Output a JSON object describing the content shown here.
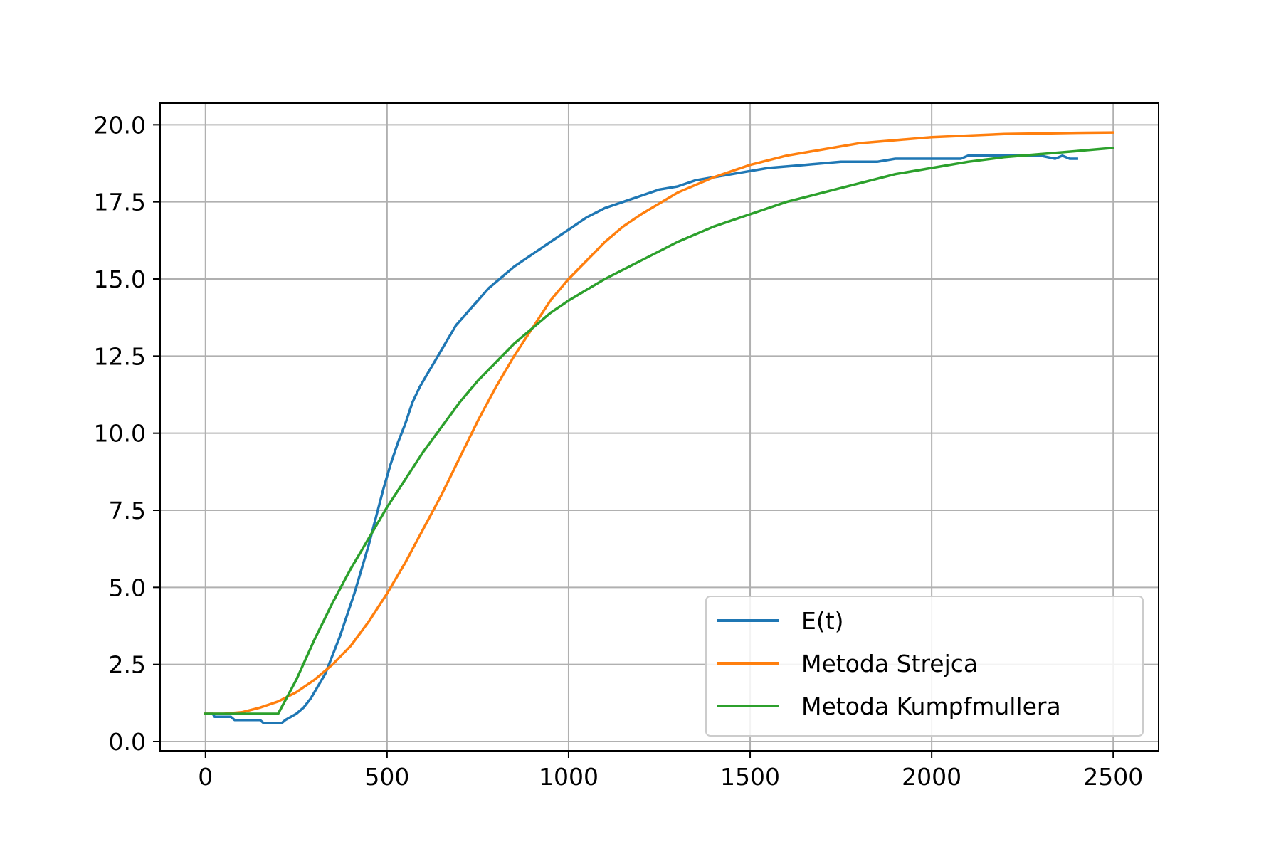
{
  "chart_data": {
    "type": "line",
    "title": "",
    "xlabel": "",
    "ylabel": "",
    "xlim": [
      -125,
      2625
    ],
    "ylim": [
      -0.3,
      20.7
    ],
    "grid": true,
    "legend_position": "lower-right",
    "x_ticks": [
      {
        "value": 0,
        "label": "0"
      },
      {
        "value": 500,
        "label": "500"
      },
      {
        "value": 1000,
        "label": "1000"
      },
      {
        "value": 1500,
        "label": "1500"
      },
      {
        "value": 2000,
        "label": "2000"
      },
      {
        "value": 2500,
        "label": "2500"
      }
    ],
    "y_ticks": [
      {
        "value": 0,
        "label": "0.0"
      },
      {
        "value": 2.5,
        "label": "2.5"
      },
      {
        "value": 5,
        "label": "5.0"
      },
      {
        "value": 7.5,
        "label": "7.5"
      },
      {
        "value": 10,
        "label": "10.0"
      },
      {
        "value": 12.5,
        "label": "12.5"
      },
      {
        "value": 15,
        "label": "15.0"
      },
      {
        "value": 17.5,
        "label": "17.5"
      },
      {
        "value": 20,
        "label": "20.0"
      }
    ],
    "series": [
      {
        "name": "E(t)",
        "color": "#1f77b4",
        "points": [
          [
            0,
            0.9
          ],
          [
            20,
            0.9
          ],
          [
            25,
            0.8
          ],
          [
            70,
            0.8
          ],
          [
            80,
            0.7
          ],
          [
            150,
            0.7
          ],
          [
            160,
            0.6
          ],
          [
            210,
            0.6
          ],
          [
            220,
            0.7
          ],
          [
            235,
            0.8
          ],
          [
            250,
            0.9
          ],
          [
            270,
            1.1
          ],
          [
            290,
            1.4
          ],
          [
            310,
            1.8
          ],
          [
            330,
            2.2
          ],
          [
            350,
            2.8
          ],
          [
            370,
            3.4
          ],
          [
            390,
            4.1
          ],
          [
            410,
            4.8
          ],
          [
            430,
            5.6
          ],
          [
            450,
            6.4
          ],
          [
            470,
            7.3
          ],
          [
            490,
            8.2
          ],
          [
            510,
            9.0
          ],
          [
            530,
            9.7
          ],
          [
            550,
            10.3
          ],
          [
            570,
            11.0
          ],
          [
            590,
            11.5
          ],
          [
            610,
            11.9
          ],
          [
            630,
            12.3
          ],
          [
            650,
            12.7
          ],
          [
            670,
            13.1
          ],
          [
            690,
            13.5
          ],
          [
            720,
            13.9
          ],
          [
            750,
            14.3
          ],
          [
            780,
            14.7
          ],
          [
            810,
            15.0
          ],
          [
            850,
            15.4
          ],
          [
            900,
            15.8
          ],
          [
            950,
            16.2
          ],
          [
            1000,
            16.6
          ],
          [
            1050,
            17.0
          ],
          [
            1100,
            17.3
          ],
          [
            1150,
            17.5
          ],
          [
            1200,
            17.7
          ],
          [
            1250,
            17.9
          ],
          [
            1300,
            18.0
          ],
          [
            1350,
            18.2
          ],
          [
            1400,
            18.3
          ],
          [
            1450,
            18.4
          ],
          [
            1500,
            18.5
          ],
          [
            1550,
            18.6
          ],
          [
            1650,
            18.7
          ],
          [
            1750,
            18.8
          ],
          [
            1850,
            18.8
          ],
          [
            1900,
            18.9
          ],
          [
            2000,
            18.9
          ],
          [
            2080,
            18.9
          ],
          [
            2100,
            19.0
          ],
          [
            2250,
            19.0
          ],
          [
            2300,
            19.0
          ],
          [
            2340,
            18.9
          ],
          [
            2360,
            19.0
          ],
          [
            2380,
            18.9
          ],
          [
            2400,
            18.9
          ]
        ]
      },
      {
        "name": "Metoda Strejca",
        "color": "#ff7f0e",
        "points": [
          [
            0,
            0.9
          ],
          [
            50,
            0.9
          ],
          [
            100,
            0.95
          ],
          [
            150,
            1.1
          ],
          [
            200,
            1.3
          ],
          [
            250,
            1.6
          ],
          [
            300,
            2.0
          ],
          [
            350,
            2.5
          ],
          [
            400,
            3.1
          ],
          [
            450,
            3.9
          ],
          [
            500,
            4.8
          ],
          [
            550,
            5.8
          ],
          [
            600,
            6.9
          ],
          [
            650,
            8.0
          ],
          [
            700,
            9.2
          ],
          [
            750,
            10.4
          ],
          [
            800,
            11.5
          ],
          [
            850,
            12.5
          ],
          [
            900,
            13.4
          ],
          [
            950,
            14.3
          ],
          [
            1000,
            15.0
          ],
          [
            1050,
            15.6
          ],
          [
            1100,
            16.2
          ],
          [
            1150,
            16.7
          ],
          [
            1200,
            17.1
          ],
          [
            1300,
            17.8
          ],
          [
            1400,
            18.3
          ],
          [
            1500,
            18.7
          ],
          [
            1600,
            19.0
          ],
          [
            1700,
            19.2
          ],
          [
            1800,
            19.4
          ],
          [
            1900,
            19.5
          ],
          [
            2000,
            19.6
          ],
          [
            2100,
            19.65
          ],
          [
            2200,
            19.7
          ],
          [
            2300,
            19.72
          ],
          [
            2400,
            19.74
          ],
          [
            2500,
            19.75
          ]
        ]
      },
      {
        "name": "Metoda Kumpfmullera",
        "color": "#2ca02c",
        "points": [
          [
            0,
            0.9
          ],
          [
            200,
            0.9
          ],
          [
            250,
            2.0
          ],
          [
            300,
            3.3
          ],
          [
            350,
            4.5
          ],
          [
            400,
            5.6
          ],
          [
            450,
            6.6
          ],
          [
            500,
            7.6
          ],
          [
            550,
            8.5
          ],
          [
            600,
            9.4
          ],
          [
            650,
            10.2
          ],
          [
            700,
            11.0
          ],
          [
            750,
            11.7
          ],
          [
            800,
            12.3
          ],
          [
            850,
            12.9
          ],
          [
            900,
            13.4
          ],
          [
            950,
            13.9
          ],
          [
            1000,
            14.3
          ],
          [
            1100,
            15.0
          ],
          [
            1200,
            15.6
          ],
          [
            1300,
            16.2
          ],
          [
            1400,
            16.7
          ],
          [
            1500,
            17.1
          ],
          [
            1600,
            17.5
          ],
          [
            1700,
            17.8
          ],
          [
            1800,
            18.1
          ],
          [
            1900,
            18.4
          ],
          [
            2000,
            18.6
          ],
          [
            2100,
            18.8
          ],
          [
            2200,
            18.95
          ],
          [
            2300,
            19.05
          ],
          [
            2400,
            19.15
          ],
          [
            2500,
            19.25
          ]
        ]
      }
    ]
  }
}
